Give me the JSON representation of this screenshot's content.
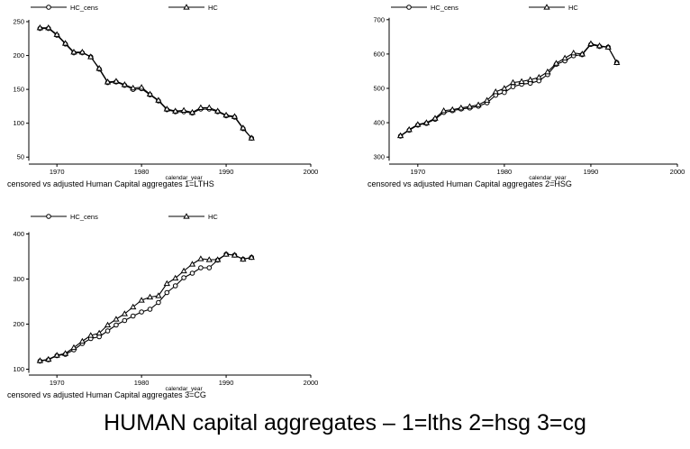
{
  "figure_title": "HUMAN capital aggregates – 1=lths 2=hsg 3=cg",
  "series_names": [
    "HC_cens",
    "HC"
  ],
  "colors": {
    "line": "#000000",
    "background": "#ffffff"
  },
  "markers": {
    "HC_cens": "hollow-circle",
    "HC": "hollow-triangle"
  },
  "chart_data": [
    {
      "type": "line",
      "title": "censored vs adjusted Human Capital aggregates 1=LTHS",
      "xlabel": "calendar_year",
      "ylabel": "",
      "xlim": [
        1967,
        2000
      ],
      "ylim": [
        45,
        258
      ],
      "xticks": [
        1970,
        1980,
        1990,
        2000
      ],
      "yticks": [
        50,
        100,
        150,
        200,
        250
      ],
      "legend": "top",
      "grid": false,
      "x": [
        1968,
        1969,
        1970,
        1971,
        1972,
        1973,
        1974,
        1975,
        1976,
        1977,
        1978,
        1979,
        1980,
        1981,
        1982,
        1983,
        1984,
        1985,
        1986,
        1987,
        1988,
        1989,
        1990,
        1991,
        1992,
        1993
      ],
      "series": [
        {
          "name": "HC_cens",
          "values": [
            240,
            240,
            230,
            217,
            204,
            204,
            198,
            180,
            160,
            161,
            156,
            150,
            151,
            142,
            133,
            120,
            117,
            117,
            115,
            121,
            121,
            117,
            111,
            109,
            92,
            78
          ]
        },
        {
          "name": "HC",
          "values": [
            241,
            241,
            231,
            218,
            205,
            205,
            198,
            181,
            161,
            162,
            157,
            152,
            153,
            143,
            134,
            121,
            118,
            119,
            116,
            123,
            123,
            118,
            112,
            110,
            93,
            78
          ]
        }
      ]
    },
    {
      "type": "line",
      "title": "censored vs adjusted Human Capital aggregates 2=HSG",
      "xlabel": "calendar_year",
      "ylabel": "",
      "xlim": [
        1967,
        2000
      ],
      "ylim": [
        290,
        710
      ],
      "xticks": [
        1970,
        1980,
        1990,
        2000
      ],
      "yticks": [
        300,
        400,
        500,
        600,
        700
      ],
      "legend": "top",
      "grid": false,
      "x": [
        1968,
        1969,
        1970,
        1971,
        1972,
        1973,
        1974,
        1975,
        1976,
        1977,
        1978,
        1979,
        1980,
        1981,
        1982,
        1983,
        1984,
        1985,
        1986,
        1987,
        1988,
        1989,
        1990,
        1991,
        1992,
        1993
      ],
      "series": [
        {
          "name": "HC_cens",
          "values": [
            361,
            378,
            393,
            398,
            410,
            430,
            435,
            440,
            443,
            448,
            458,
            480,
            488,
            505,
            512,
            515,
            522,
            540,
            570,
            580,
            595,
            598,
            628,
            622,
            620,
            575
          ]
        },
        {
          "name": "HC",
          "values": [
            362,
            380,
            395,
            400,
            413,
            435,
            438,
            443,
            447,
            452,
            465,
            490,
            500,
            517,
            520,
            525,
            532,
            548,
            573,
            588,
            603,
            600,
            630,
            624,
            620,
            575
          ]
        }
      ]
    },
    {
      "type": "line",
      "title": "censored vs adjusted Human Capital aggregates 3=CG",
      "xlabel": "calendar_year",
      "ylabel": "",
      "xlim": [
        1967,
        2000
      ],
      "ylim": [
        95,
        405
      ],
      "xticks": [
        1970,
        1980,
        1990,
        2000
      ],
      "yticks": [
        100,
        200,
        300,
        400
      ],
      "legend": "top",
      "grid": false,
      "x": [
        1968,
        1969,
        1970,
        1971,
        1972,
        1973,
        1974,
        1975,
        1976,
        1977,
        1978,
        1979,
        1980,
        1981,
        1982,
        1983,
        1984,
        1985,
        1986,
        1987,
        1988,
        1989,
        1990,
        1991,
        1992,
        1993
      ],
      "series": [
        {
          "name": "HC_cens",
          "values": [
            118,
            121,
            130,
            133,
            143,
            157,
            168,
            172,
            185,
            198,
            208,
            218,
            227,
            233,
            248,
            270,
            285,
            303,
            313,
            325,
            325,
            342,
            355,
            353,
            344,
            348
          ]
        },
        {
          "name": "HC",
          "values": [
            119,
            122,
            131,
            135,
            148,
            162,
            175,
            180,
            198,
            211,
            223,
            238,
            253,
            260,
            263,
            290,
            302,
            318,
            333,
            345,
            343,
            343,
            355,
            353,
            344,
            348
          ]
        }
      ]
    }
  ]
}
